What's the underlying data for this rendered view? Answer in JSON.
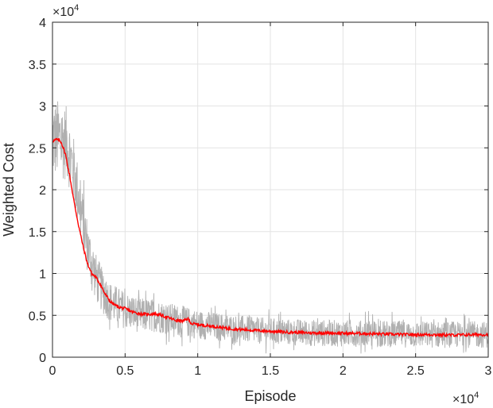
{
  "chart_data": {
    "type": "line",
    "title": "",
    "xlabel": "Episode",
    "ylabel": "Weighted Cost",
    "xlim": [
      0,
      30000
    ],
    "ylim": [
      0,
      40000
    ],
    "x_ticks": [
      0,
      5000,
      10000,
      15000,
      20000,
      25000,
      30000
    ],
    "x_tick_labels": [
      "0",
      "0.5",
      "1",
      "1.5",
      "2",
      "2.5",
      "3"
    ],
    "y_ticks": [
      0,
      5000,
      10000,
      15000,
      20000,
      25000,
      30000,
      35000,
      40000
    ],
    "y_tick_labels": [
      "0",
      "0.5",
      "1",
      "1.5",
      "2",
      "2.5",
      "3",
      "3.5",
      "4"
    ],
    "x_multiplier": "×10",
    "x_multiplier_exp": "4",
    "y_multiplier": "×10",
    "y_multiplier_exp": "4",
    "grid": true,
    "series": [
      {
        "style": "raw-noisy",
        "color": "#b0b0b0",
        "x": [
          0,
          500,
          1000,
          1500,
          2000,
          2500,
          3000,
          3500,
          4000,
          5000,
          6000,
          7000,
          8000,
          9000,
          10000,
          12000,
          14000,
          16000,
          18000,
          20000,
          22000,
          24000,
          26000,
          28000,
          30000
        ],
        "values": [
          26000,
          26000,
          25500,
          22000,
          17000,
          12500,
          9500,
          7700,
          6600,
          5600,
          5000,
          5000,
          4600,
          4300,
          3900,
          3500,
          3200,
          3000,
          2900,
          2850,
          2800,
          2750,
          2700,
          2700,
          2700
        ],
        "noise_amplitude": [
          6000,
          6000,
          5500,
          5000,
          4500,
          4000,
          3600,
          3300,
          3000,
          2800,
          2600,
          2500,
          2400,
          2300,
          2200,
          2100,
          2000,
          2000,
          2000,
          2000,
          2000,
          2000,
          2000,
          2000,
          2000
        ]
      },
      {
        "style": "smoothed",
        "color": "#ff0000",
        "x": [
          0,
          300,
          600,
          900,
          1200,
          1500,
          1800,
          2100,
          2400,
          2700,
          3000,
          3300,
          3600,
          4000,
          4500,
          5000,
          5500,
          6000,
          6500,
          7000,
          7500,
          8000,
          8500,
          9000,
          9300,
          9600,
          10000,
          11000,
          12000,
          13000,
          14000,
          15000,
          16000,
          17000,
          18000,
          19000,
          20000,
          21000,
          22000,
          23000,
          24000,
          25000,
          26000,
          27000,
          28000,
          29000,
          30000
        ],
        "values": [
          25800,
          26000,
          25700,
          24200,
          21500,
          18400,
          15700,
          13300,
          11200,
          10000,
          9500,
          8700,
          7600,
          6600,
          6000,
          5800,
          5400,
          5200,
          5100,
          5200,
          5000,
          4700,
          4400,
          4300,
          4600,
          4000,
          3900,
          3700,
          3450,
          3300,
          3200,
          3100,
          3000,
          2950,
          2900,
          2900,
          2850,
          2850,
          2800,
          2750,
          2700,
          2700,
          2700,
          2650,
          2650,
          2700,
          2700
        ]
      }
    ]
  }
}
